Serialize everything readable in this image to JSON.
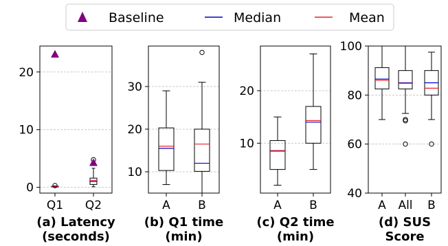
{
  "legend": {
    "items": [
      {
        "label": "Baseline",
        "marker": "triangle",
        "color": "#800080"
      },
      {
        "label": "Median",
        "marker": "line",
        "color": "#0000cc"
      },
      {
        "label": "Mean",
        "marker": "line",
        "color": "#e8202a"
      }
    ]
  },
  "colors": {
    "baseline": "#800080",
    "median": "#0000cc",
    "mean": "#e8202a",
    "box": "#000000",
    "grid": "#c8c8c8"
  },
  "chart_data": [
    {
      "type": "box",
      "title": "(a) Latency\n(seconds)",
      "categories": [
        "Q1",
        "Q2"
      ],
      "ylim": [
        -1,
        24.5
      ],
      "yticks": [
        0,
        10,
        20
      ],
      "grid": true,
      "boxes": [
        {
          "category": "Q1",
          "whisker_low": 0.1,
          "q1": 0.12,
          "median": 0.15,
          "mean": 0.16,
          "q3": 0.2,
          "whisker_high": 0.25,
          "outliers": [
            0.3
          ]
        },
        {
          "category": "Q2",
          "whisker_low": 0.1,
          "q1": 0.5,
          "median": 1.0,
          "mean": 1.2,
          "q3": 1.6,
          "whisker_high": 3.3,
          "outliers": [
            4.8
          ]
        }
      ],
      "baseline": [
        {
          "category": "Q1",
          "value": 23.1
        },
        {
          "category": "Q2",
          "value": 4.3
        }
      ]
    },
    {
      "type": "box",
      "title": "(b) Q1 time\n(min)",
      "categories": [
        "A",
        "B"
      ],
      "ylim": [
        5,
        39.5
      ],
      "yticks": [
        10,
        20,
        30
      ],
      "grid": true,
      "boxes": [
        {
          "category": "A",
          "whisker_low": 7,
          "q1": 10.3,
          "median": 15.5,
          "mean": 16.0,
          "q3": 20.3,
          "whisker_high": 29,
          "outliers": []
        },
        {
          "category": "B",
          "whisker_low": 5,
          "q1": 10.1,
          "median": 12.0,
          "mean": 16.5,
          "q3": 20.0,
          "whisker_high": 31,
          "outliers": [
            38
          ]
        }
      ]
    },
    {
      "type": "box",
      "title": "(c) Q2 time\n(min)",
      "categories": [
        "A",
        "B"
      ],
      "ylim": [
        0.5,
        28.5
      ],
      "yticks": [
        10,
        20
      ],
      "grid": true,
      "boxes": [
        {
          "category": "A",
          "whisker_low": 2,
          "q1": 5,
          "median": 8.5,
          "mean": 8.6,
          "q3": 10.5,
          "whisker_high": 15,
          "outliers": []
        },
        {
          "category": "B",
          "whisker_low": 5,
          "q1": 10,
          "median": 14.0,
          "mean": 14.3,
          "q3": 17,
          "whisker_high": 27,
          "outliers": []
        }
      ]
    },
    {
      "type": "box",
      "title": "(d) SUS\nScore",
      "categories": [
        "A",
        "All",
        "B"
      ],
      "ylim": [
        40,
        100
      ],
      "yticks": [
        40,
        60,
        80,
        100
      ],
      "grid": true,
      "boxes": [
        {
          "category": "A",
          "whisker_low": 70,
          "q1": 82.5,
          "median": 86.5,
          "mean": 86.0,
          "q3": 91.2,
          "whisker_high": 100,
          "outliers": []
        },
        {
          "category": "All",
          "whisker_low": 72.5,
          "q1": 82.5,
          "median": 85.0,
          "mean": 84.8,
          "q3": 90.0,
          "whisker_high": 100,
          "outliers": [
            70,
            69.5,
            60
          ]
        },
        {
          "category": "B",
          "whisker_low": 70,
          "q1": 80.0,
          "median": 85.0,
          "mean": 82.8,
          "q3": 90.0,
          "whisker_high": 97.5,
          "outliers": [
            60
          ]
        }
      ]
    }
  ]
}
